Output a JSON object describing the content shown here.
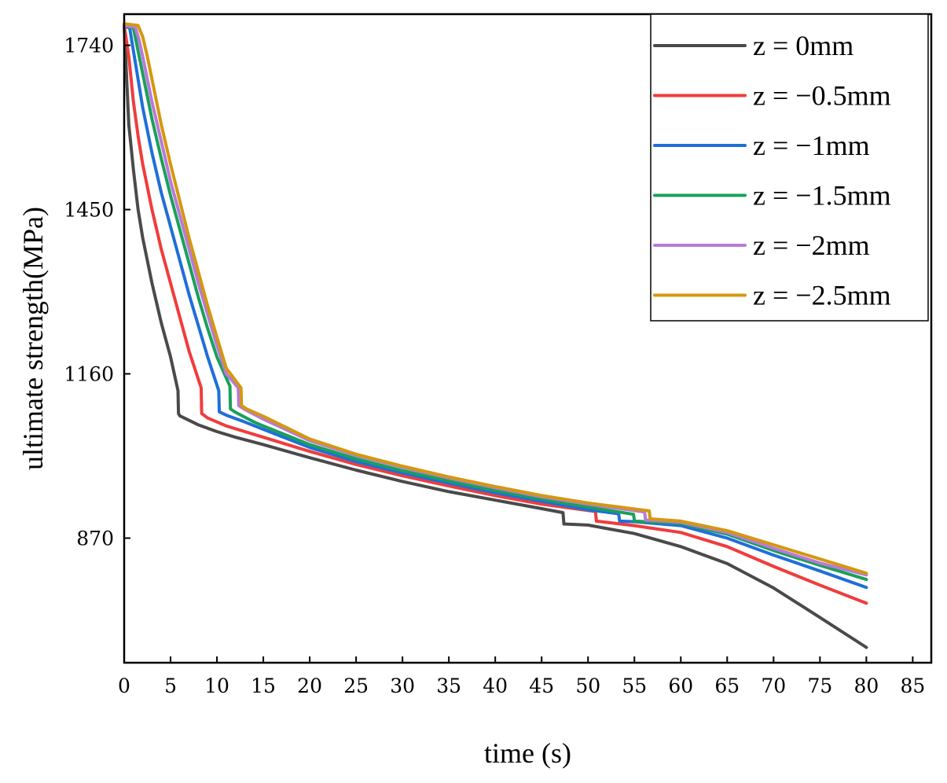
{
  "chart_data": {
    "type": "line",
    "title": "",
    "xlabel": "time (s)",
    "ylabel": "ultimate strength(MPa)",
    "xlim": [
      0,
      87
    ],
    "ylim": [
      650,
      1795
    ],
    "x_ticks": [
      0,
      5,
      10,
      15,
      20,
      25,
      30,
      35,
      40,
      45,
      50,
      55,
      60,
      65,
      70,
      75,
      80,
      85
    ],
    "x_tick_labels": [
      "0",
      "5",
      "10",
      "15",
      "20",
      "25",
      "30",
      "35",
      "40",
      "45",
      "50",
      "55",
      "60",
      "65",
      "70",
      "75",
      "80",
      "85"
    ],
    "y_ticks": [
      870,
      1160,
      1450,
      1740
    ],
    "y_tick_labels": [
      "870",
      "1160",
      "1450",
      "1740"
    ],
    "grid": false,
    "legend_position": "top-right",
    "series": [
      {
        "name": "z = 0mm",
        "color": "#4a4a4a",
        "x": [
          0,
          0.5,
          1,
          1.5,
          2,
          3,
          4,
          5,
          5.8,
          5.85,
          6,
          8,
          10,
          12,
          15,
          20,
          25,
          30,
          35,
          40,
          45,
          47.3,
          47.4,
          50,
          55,
          60,
          65,
          70,
          75,
          80
        ],
        "y": [
          1775,
          1600,
          1520,
          1450,
          1400,
          1320,
          1250,
          1190,
          1130,
          1090,
          1086,
          1070,
          1058,
          1048,
          1035,
          1012,
          990,
          970,
          952,
          937,
          922,
          915,
          895,
          893,
          878,
          855,
          825,
          782,
          730,
          677
        ]
      },
      {
        "name": "z = −0.5mm",
        "color": "#f03c3c",
        "x": [
          0,
          0.5,
          1,
          1.5,
          2,
          3,
          4,
          5,
          6,
          7,
          8.3,
          8.35,
          9,
          11,
          13,
          15,
          20,
          25,
          30,
          35,
          40,
          45,
          50.8,
          50.9,
          55,
          60,
          65,
          70,
          75,
          80
        ],
        "y": [
          1775,
          1720,
          1640,
          1580,
          1530,
          1450,
          1380,
          1320,
          1260,
          1200,
          1135,
          1090,
          1082,
          1068,
          1058,
          1048,
          1023,
          1000,
          980,
          962,
          945,
          930,
          917,
          900,
          892,
          880,
          855,
          820,
          787,
          755
        ]
      },
      {
        "name": "z = −1mm",
        "color": "#1f6fd8",
        "x": [
          0,
          0.6,
          1,
          1.5,
          2,
          3,
          4,
          5,
          6,
          7,
          8,
          9,
          10.2,
          10.25,
          11,
          13,
          15,
          20,
          25,
          30,
          35,
          40,
          45,
          50,
          53.3,
          53.4,
          55,
          60,
          65,
          70,
          75,
          80
        ],
        "y": [
          1775,
          1770,
          1730,
          1680,
          1630,
          1550,
          1480,
          1420,
          1360,
          1300,
          1245,
          1190,
          1130,
          1093,
          1087,
          1075,
          1062,
          1030,
          1005,
          985,
          967,
          950,
          935,
          920,
          913,
          900,
          899,
          892,
          870,
          840,
          812,
          783
        ]
      },
      {
        "name": "z = −1.5mm",
        "color": "#1aa05a",
        "x": [
          0,
          1,
          1.5,
          2,
          3,
          4,
          5,
          6,
          7,
          8,
          9,
          10,
          11.4,
          11.45,
          12,
          14,
          15,
          20,
          25,
          30,
          35,
          40,
          45,
          50,
          54.9,
          55,
          60,
          65,
          70,
          75,
          80
        ],
        "y": [
          1775,
          1770,
          1730,
          1690,
          1610,
          1540,
          1475,
          1415,
          1355,
          1295,
          1240,
          1190,
          1138,
          1098,
          1092,
          1075,
          1068,
          1035,
          1010,
          989,
          971,
          954,
          939,
          925,
          912,
          900,
          896,
          877,
          848,
          822,
          797
        ]
      },
      {
        "name": "z = −2mm",
        "color": "#b87ad8",
        "x": [
          0,
          1.2,
          1.6,
          2,
          3,
          4,
          5,
          6,
          7,
          8,
          9,
          10,
          11,
          12.3,
          12.35,
          13,
          15,
          20,
          25,
          30,
          35,
          40,
          45,
          50,
          56.1,
          56.2,
          60,
          65,
          70,
          75,
          80
        ],
        "y": [
          1775,
          1772,
          1750,
          1720,
          1640,
          1570,
          1500,
          1440,
          1380,
          1320,
          1265,
          1210,
          1160,
          1135,
          1104,
          1097,
          1080,
          1042,
          1016,
          995,
          976,
          959,
          943,
          930,
          916,
          902,
          898,
          880,
          852,
          826,
          805
        ]
      },
      {
        "name": "z = −2.5mm",
        "color": "#d4980e",
        "x": [
          0,
          1.5,
          2,
          2.5,
          3,
          4,
          5,
          6,
          7,
          8,
          9,
          10,
          11,
          12.6,
          12.65,
          13.2,
          15,
          20,
          25,
          30,
          35,
          40,
          45,
          50,
          56.6,
          56.7,
          60,
          65,
          70,
          75,
          80
        ],
        "y": [
          1778,
          1775,
          1755,
          1720,
          1680,
          1600,
          1530,
          1465,
          1400,
          1340,
          1280,
          1225,
          1170,
          1135,
          1104,
          1098,
          1085,
          1045,
          1018,
          997,
          978,
          961,
          945,
          932,
          918,
          904,
          900,
          883,
          858,
          833,
          808
        ]
      }
    ]
  }
}
